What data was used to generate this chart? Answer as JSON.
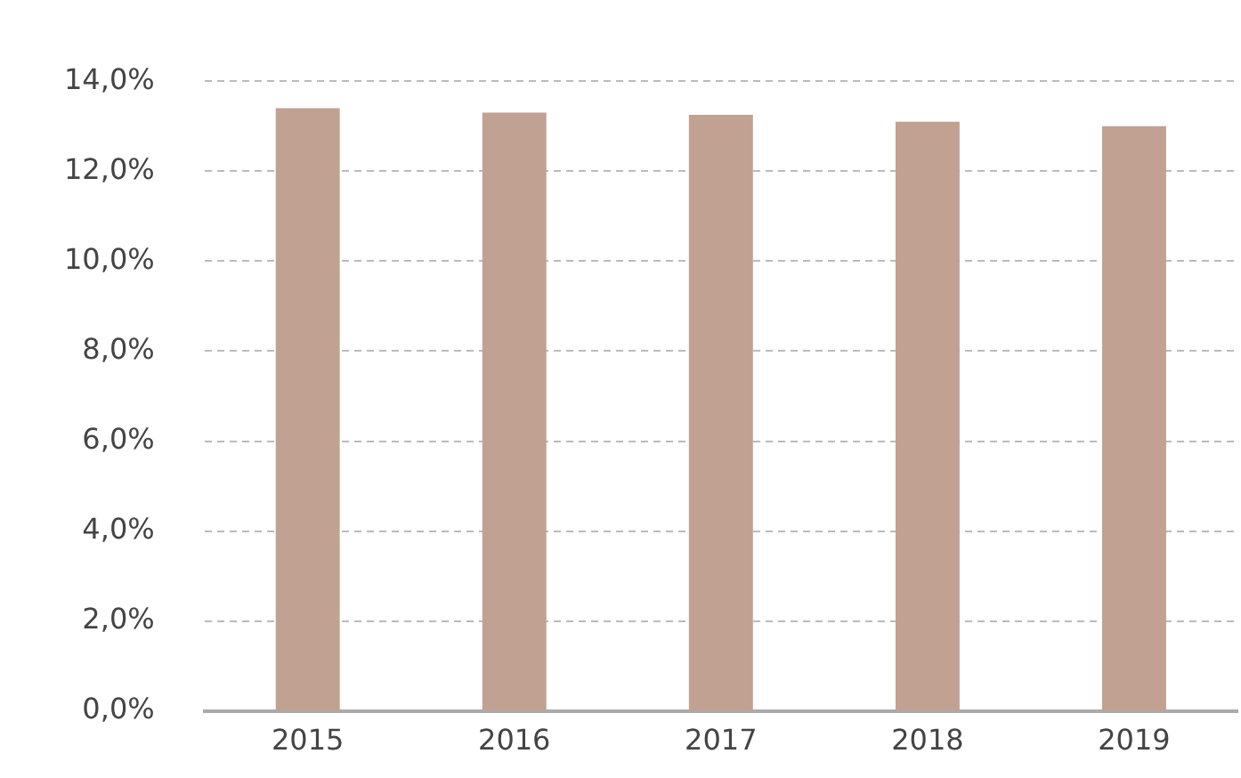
{
  "chart_data": {
    "type": "bar",
    "categories": [
      "2015",
      "2016",
      "2017",
      "2018",
      "2019"
    ],
    "values": [
      13.4,
      13.3,
      13.25,
      13.1,
      13.0
    ],
    "color": "#c1a191",
    "ylim": [
      0,
      14
    ],
    "yticks": [
      {
        "value": 0,
        "label": "0,0%"
      },
      {
        "value": 2,
        "label": "2,0%"
      },
      {
        "value": 4,
        "label": "4,0%"
      },
      {
        "value": 6,
        "label": "6,0%"
      },
      {
        "value": 8,
        "label": "8,0%"
      },
      {
        "value": 10,
        "label": "10,0%"
      },
      {
        "value": 12,
        "label": "12,0%"
      },
      {
        "value": 14,
        "label": "14,0%"
      }
    ],
    "grid": "y",
    "legend": false
  }
}
